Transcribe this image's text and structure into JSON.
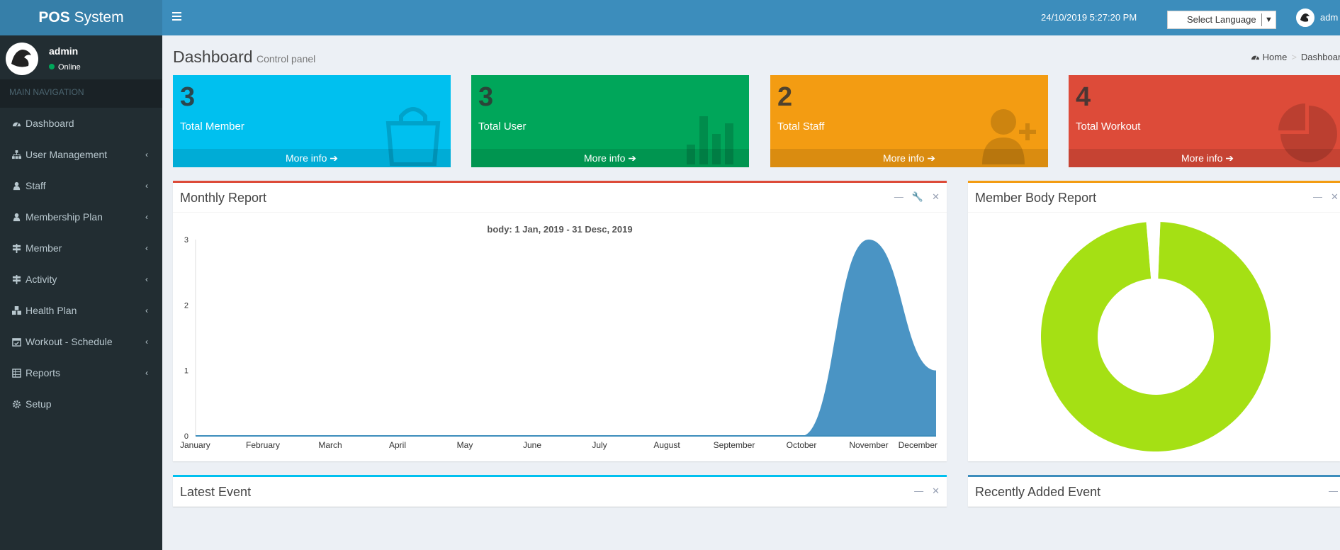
{
  "header": {
    "logo_bold": "POS",
    "logo_rest": " System",
    "datetime": "24/10/2019 5:27:20 PM",
    "language_select": "Select Language",
    "user": "adm"
  },
  "sidebar": {
    "user": {
      "name": "admin",
      "status": "Online"
    },
    "section_header": "MAIN NAVIGATION",
    "items": [
      {
        "label": "Dashboard",
        "icon": "dashboard-icon",
        "has_children": false
      },
      {
        "label": "User Management",
        "icon": "sitemap-icon",
        "has_children": true
      },
      {
        "label": "Staff",
        "icon": "user-icon",
        "has_children": true
      },
      {
        "label": "Membership Plan",
        "icon": "user-icon",
        "has_children": true
      },
      {
        "label": "Member",
        "icon": "signpost-icon",
        "has_children": true
      },
      {
        "label": "Activity",
        "icon": "signpost-icon",
        "has_children": true
      },
      {
        "label": "Health Plan",
        "icon": "cubes-icon",
        "has_children": true
      },
      {
        "label": "Workout - Schedule",
        "icon": "calendar-check-icon",
        "has_children": true
      },
      {
        "label": "Reports",
        "icon": "table-icon",
        "has_children": true
      },
      {
        "label": "Setup",
        "icon": "gear-icon",
        "has_children": false
      }
    ]
  },
  "content_header": {
    "title": "Dashboard",
    "subtitle": "Control panel",
    "breadcrumb": [
      "Home",
      "Dashboard"
    ]
  },
  "stat_boxes": [
    {
      "value": "3",
      "label": "Total Member",
      "link": "More info",
      "color": "#00c0ef",
      "icon": "shopping-bag-icon"
    },
    {
      "value": "3",
      "label": "Total User",
      "link": "More info",
      "color": "#00a65a",
      "icon": "bar-chart-icon"
    },
    {
      "value": "2",
      "label": "Total Staff",
      "link": "More info",
      "color": "#f39c12",
      "icon": "user-plus-icon"
    },
    {
      "value": "4",
      "label": "Total Workout",
      "link": "More info",
      "color": "#dd4b39",
      "icon": "pie-chart-icon"
    }
  ],
  "monthly_report": {
    "title": "Monthly Report"
  },
  "member_body_report": {
    "title": "Member Body Report"
  },
  "latest_event": {
    "title": "Latest Event"
  },
  "recently_added_event": {
    "title": "Recently Added Event"
  },
  "chart_data": [
    {
      "type": "area",
      "title": "body: 1 Jan, 2019 - 31 Desc, 2019",
      "categories": [
        "January",
        "February",
        "March",
        "April",
        "May",
        "June",
        "July",
        "August",
        "September",
        "October",
        "November",
        "December"
      ],
      "values": [
        0,
        0,
        0,
        0,
        0,
        0,
        0,
        0,
        0,
        0,
        3,
        1
      ],
      "ylim": [
        0,
        3
      ],
      "yticks": [
        "0",
        "1",
        "2",
        "3"
      ],
      "color": "#3c8dbc",
      "grid": false
    },
    {
      "type": "pie",
      "style": "donut",
      "values": [
        1,
        0.02
      ],
      "colors": [
        "#a5e014",
        "#ffffff"
      ]
    }
  ]
}
